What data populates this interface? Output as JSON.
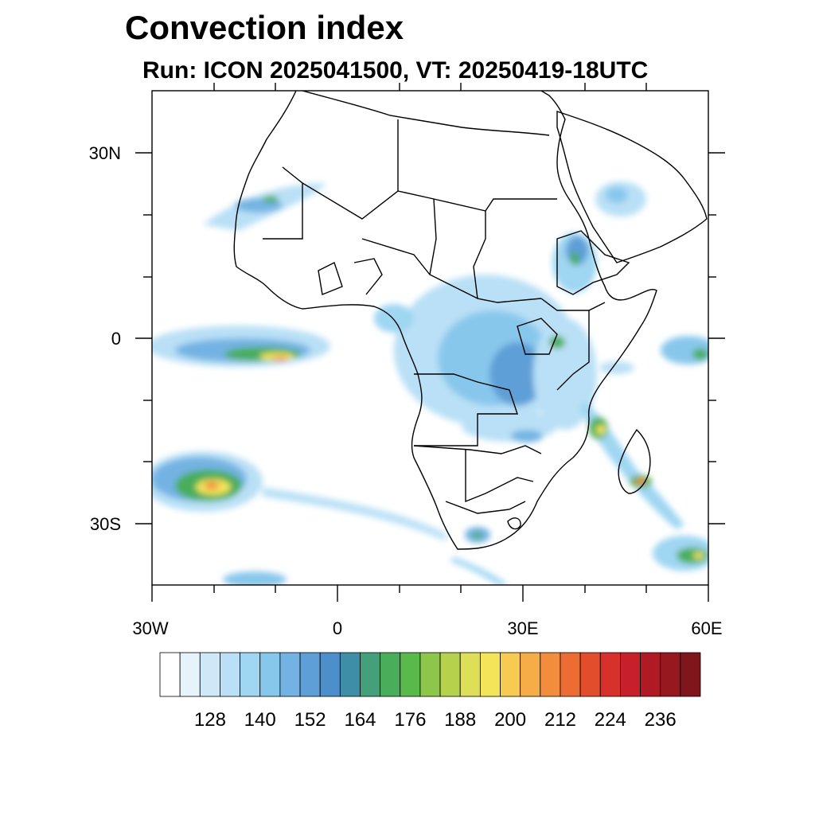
{
  "map": {
    "title": "Convection index",
    "subtitle": "Run: ICON 2025041500,  VT: 20250419-18UTC",
    "lat_labels": [
      "30N",
      "0",
      "30S"
    ],
    "lon_labels": [
      "30W",
      "0",
      "30E",
      "60E"
    ],
    "colorbar": {
      "labels": [
        "128",
        "140",
        "152",
        "164",
        "176",
        "188",
        "200",
        "212",
        "224",
        "236"
      ],
      "colors": [
        "#ffffff",
        "#e6f3fb",
        "#cfe8f7",
        "#b9e0f6",
        "#9fd6f2",
        "#88c7ec",
        "#73b3e3",
        "#5e9fd7",
        "#4c8fca",
        "#3f8ea8",
        "#44a07a",
        "#49ad5a",
        "#5ab94b",
        "#8cc64a",
        "#b6d14c",
        "#dde056",
        "#f3e45a",
        "#f7cb52",
        "#f6ad48",
        "#f28d3e",
        "#ed6c34",
        "#e24d2b",
        "#d8302b",
        "#c8202a",
        "#b01a24",
        "#981820",
        "#80161c"
      ]
    },
    "colors": {
      "coast": "#000000",
      "blue_light": "#b9e0f6",
      "blue_mid": "#73b3e3",
      "green": "#49ad5a",
      "yellow": "#f3e45a",
      "red": "#e24d2b"
    }
  }
}
